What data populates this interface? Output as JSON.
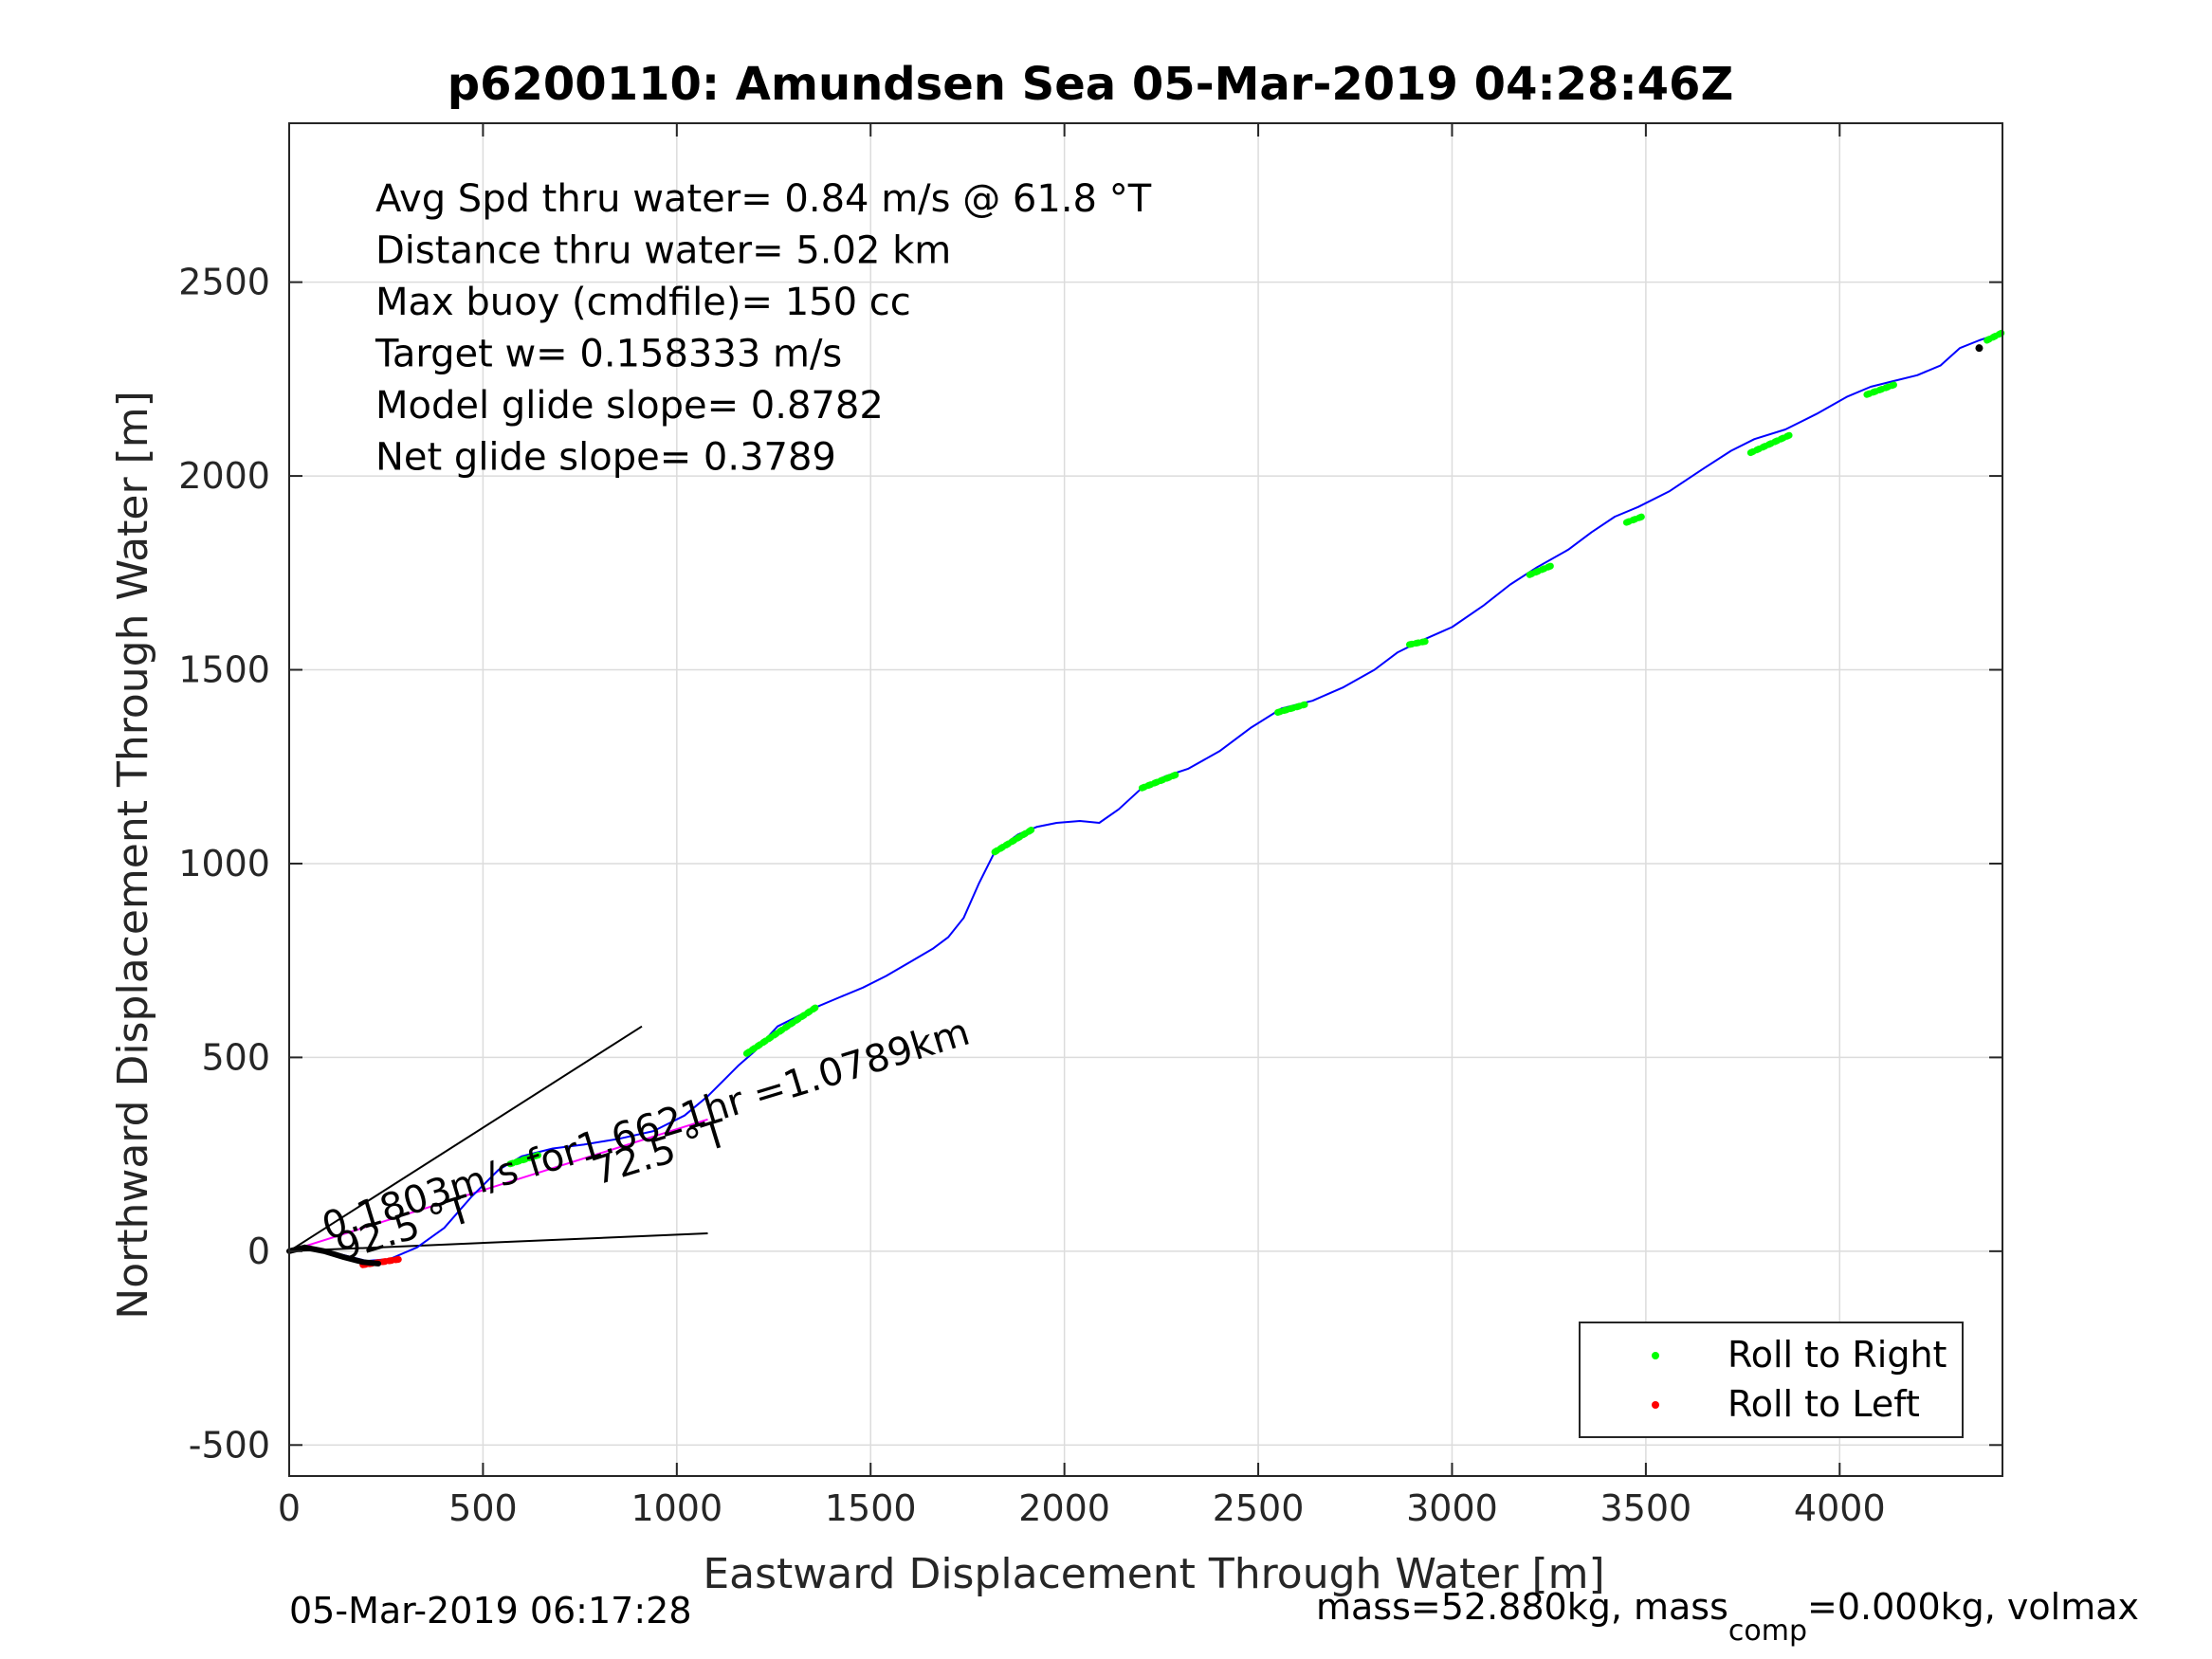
{
  "chart_data": {
    "type": "line",
    "title": "p6200110: Amundsen Sea 05-Mar-2019 04:28:46Z",
    "xlabel": "Eastward Displacement Through Water [m]",
    "ylabel": "Northward Displacement Through Water [m]",
    "xlim": [
      0,
      4420
    ],
    "ylim": [
      -580,
      2910
    ],
    "xticks": [
      0,
      500,
      1000,
      1500,
      2000,
      2500,
      3000,
      3500,
      4000
    ],
    "yticks": [
      -500,
      0,
      500,
      1000,
      1500,
      2000,
      2500
    ],
    "grid": true,
    "colors": {
      "track": "#0000ff",
      "roll_right": "#00ff00",
      "roll_left": "#ff0000",
      "drift": "#ff00ff",
      "axes": "#262626",
      "grid": "#dcdcdc"
    },
    "stats": [
      "Avg Spd thru water=  0.84 m/s @  61.8 °T",
      "Distance thru water=  5.02 km",
      "Max buoy (cmdfile)= 150 cc",
      "Target w= 0.158333 m/s",
      "Model glide slope= 0.8782",
      "Net glide slope= 0.3789"
    ],
    "track": {
      "name": "",
      "x": [
        0,
        60,
        120,
        200,
        260,
        330,
        400,
        470,
        540,
        600,
        680,
        760,
        850,
        940,
        1020,
        1080,
        1120,
        1160,
        1200,
        1260,
        1360,
        1420,
        1480,
        1540,
        1600,
        1660,
        1700,
        1740,
        1780,
        1820,
        1880,
        1930,
        1980,
        2040,
        2090,
        2140,
        2200,
        2260,
        2320,
        2400,
        2480,
        2560,
        2640,
        2720,
        2800,
        2860,
        2920,
        3000,
        3080,
        3150,
        3220,
        3300,
        3360,
        3420,
        3480,
        3560,
        3650,
        3720,
        3780,
        3860,
        3940,
        4020,
        4080,
        4140,
        4200,
        4260,
        4310,
        4360,
        4420
      ],
      "y": [
        0,
        10,
        -5,
        -25,
        -20,
        10,
        60,
        140,
        210,
        245,
        265,
        275,
        290,
        310,
        350,
        400,
        440,
        480,
        515,
        580,
        630,
        655,
        680,
        710,
        745,
        780,
        810,
        860,
        950,
        1030,
        1075,
        1095,
        1105,
        1110,
        1105,
        1140,
        1195,
        1225,
        1245,
        1290,
        1350,
        1400,
        1420,
        1455,
        1500,
        1545,
        1575,
        1610,
        1665,
        1720,
        1765,
        1810,
        1855,
        1895,
        1920,
        1960,
        2020,
        2065,
        2095,
        2120,
        2160,
        2205,
        2230,
        2245,
        2260,
        2285,
        2330,
        2350,
        2370
      ]
    },
    "roll_right_segments": [
      {
        "x": [
          570,
          650
        ],
        "y": [
          225,
          250
        ]
      },
      {
        "x": [
          1180,
          1360
        ],
        "y": [
          510,
          630
        ]
      },
      {
        "x": [
          1820,
          1920
        ],
        "y": [
          1030,
          1090
        ]
      },
      {
        "x": [
          2200,
          2290
        ],
        "y": [
          1195,
          1230
        ]
      },
      {
        "x": [
          2550,
          2620
        ],
        "y": [
          1390,
          1410
        ]
      },
      {
        "x": [
          2890,
          2940
        ],
        "y": [
          1565,
          1575
        ]
      },
      {
        "x": [
          3200,
          3260
        ],
        "y": [
          1745,
          1770
        ]
      },
      {
        "x": [
          3450,
          3490
        ],
        "y": [
          1880,
          1895
        ]
      },
      {
        "x": [
          3770,
          3870
        ],
        "y": [
          2060,
          2105
        ]
      },
      {
        "x": [
          4070,
          4140
        ],
        "y": [
          2210,
          2235
        ]
      },
      {
        "x": [
          4380,
          4420
        ],
        "y": [
          2350,
          2370
        ]
      }
    ],
    "roll_left_segments": [
      {
        "x": [
          190,
          290
        ],
        "y": [
          -35,
          -20
        ]
      }
    ],
    "descent_path": {
      "x": [
        0,
        40,
        90,
        140,
        190,
        230
      ],
      "y": [
        0,
        10,
        0,
        -15,
        -28,
        -32
      ]
    },
    "drift_vector": {
      "x": [
        0,
        1080
      ],
      "y": [
        0,
        340
      ]
    },
    "heading_lines": [
      {
        "label": "92.5 °T",
        "x": [
          0,
          1080
        ],
        "y": [
          0,
          46
        ]
      },
      {
        "label": "72.5 °T",
        "x": [
          0,
          910
        ],
        "y": [
          0,
          580
        ]
      }
    ],
    "final_point": {
      "x": [
        4360
      ],
      "y": [
        2330
      ]
    },
    "drift_annotation": "0.1803m/s for1.6621hr =1.0789km",
    "legend": {
      "placement": "bottom-right",
      "entries": [
        "Roll to Right",
        "Roll to Left"
      ]
    },
    "footer_left": "05-Mar-2019 06:17:28",
    "footer_right": "mass=52.880kg, mass",
    "footer_right_sub": "comp",
    "footer_right_tail": "=0.000kg, volmax"
  }
}
